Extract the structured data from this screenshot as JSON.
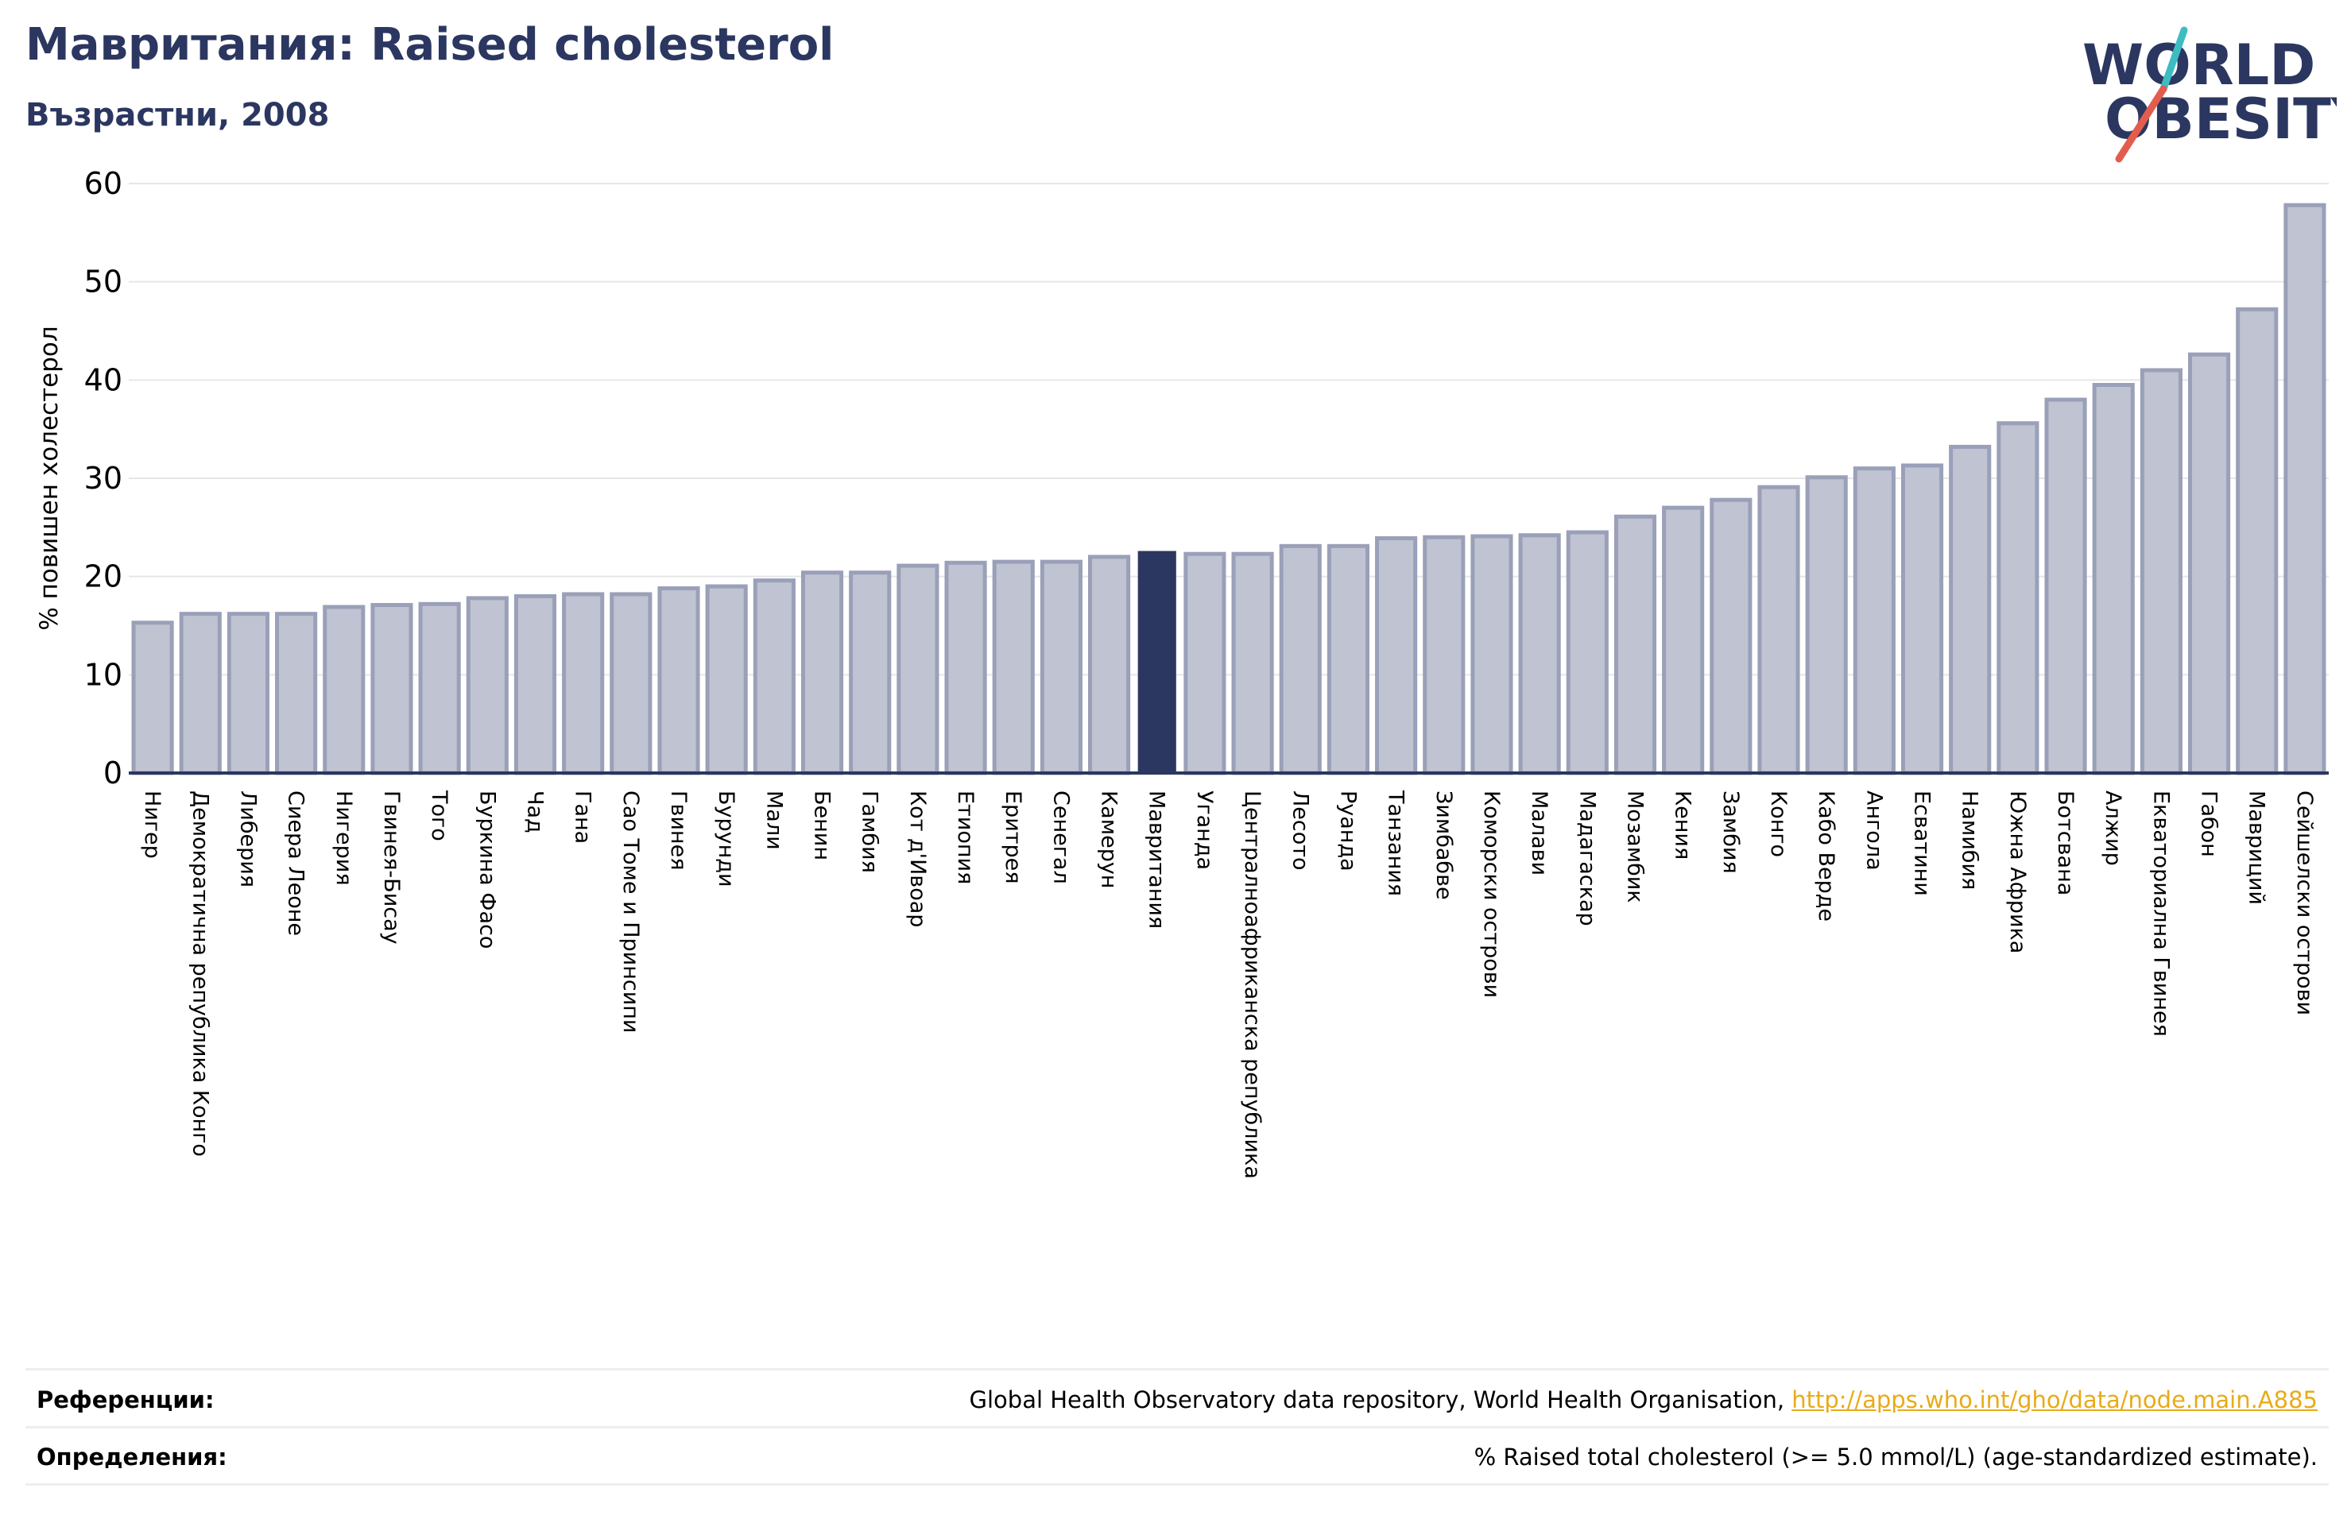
{
  "header": {
    "title": "Мавритания: Raised cholesterol",
    "subtitle": "Възрастни, 2008"
  },
  "logo": {
    "line1": "WORLD",
    "line2": "OBESITY",
    "text_color": "#2b3760",
    "slash_colors": [
      "#3dbdc2",
      "#e35d4e"
    ]
  },
  "colors": {
    "bar": "#bfc3d2",
    "bar_stroke": "#9aa0b8",
    "highlight": "#2b3760",
    "grid": "#e6e6e6",
    "axis": "#2b3760"
  },
  "chart_data": {
    "type": "bar",
    "ylabel": "% повишен холестерол",
    "ylim": [
      0,
      60
    ],
    "yticks": [
      0,
      10,
      20,
      30,
      40,
      50,
      60
    ],
    "grid": true,
    "highlight_category": "Мавритания",
    "categories": [
      "Нигер",
      "Демократична република Конго",
      "Либерия",
      "Сиера Леоне",
      "Нигерия",
      "Гвинея-Бисау",
      "Того",
      "Буркина Фасо",
      "Чад",
      "Гана",
      "Сао Томе и Принсипи",
      "Гвинея",
      "Бурунди",
      "Мали",
      "Бенин",
      "Гамбия",
      "Кот д'Ивоар",
      "Етиопия",
      "Еритрея",
      "Сенегал",
      "Камерун",
      "Мавритания",
      "Уганда",
      "Централноафриканска република",
      "Лесото",
      "Руанда",
      "Танзания",
      "Зимбабве",
      "Коморски острови",
      "Малави",
      "Мадагаскар",
      "Мозамбик",
      "Кения",
      "Замбия",
      "Конго",
      "Кабо Верде",
      "Ангола",
      "Есватини",
      "Намибия",
      "Южна Африка",
      "Ботсвана",
      "Алжир",
      "Екваториална Гвинея",
      "Габон",
      "Мавриций",
      "Сейшелски острови"
    ],
    "values": [
      15.3,
      16.2,
      16.2,
      16.2,
      16.9,
      17.1,
      17.2,
      17.8,
      18.0,
      18.2,
      18.2,
      18.8,
      19.0,
      19.6,
      20.4,
      20.4,
      21.1,
      21.4,
      21.5,
      21.5,
      22.0,
      22.6,
      22.3,
      22.3,
      23.1,
      23.1,
      23.9,
      24.0,
      24.1,
      24.2,
      24.5,
      26.1,
      27.0,
      27.8,
      29.1,
      30.1,
      31.0,
      31.3,
      33.2,
      35.6,
      38.0,
      39.5,
      41.0,
      42.6,
      47.2,
      57.8
    ]
  },
  "footer": {
    "references_label": "Референции:",
    "references_text": "Global Health Observatory data repository, World Health Organisation, ",
    "references_link": "http://apps.who.int/gho/data/node.main.A885",
    "definitions_label": "Определения:",
    "definitions_text": "% Raised total cholesterol (>= 5.0 mmol/L) (age-standardized estimate)."
  }
}
